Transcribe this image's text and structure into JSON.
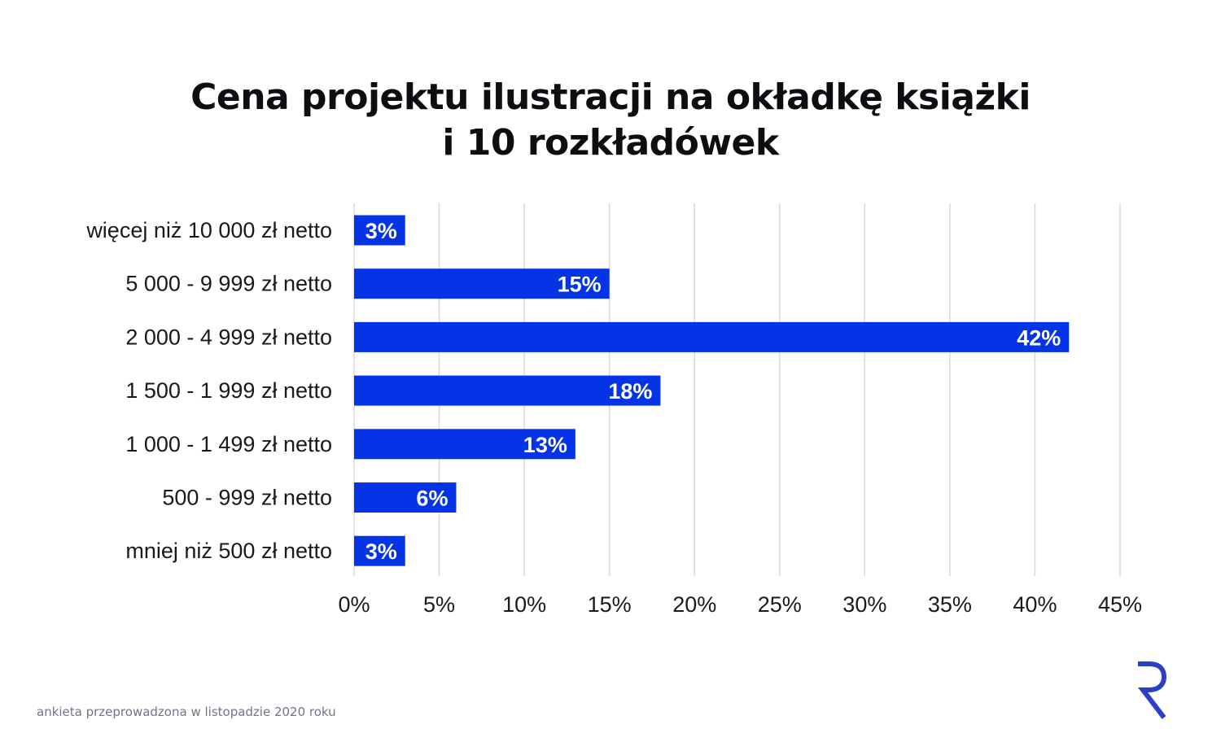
{
  "chart_data": {
    "type": "bar",
    "orientation": "horizontal",
    "title_lines": [
      "Cena projektu ilustracji na okładkę książki",
      "i 10 rozkładówek"
    ],
    "categories": [
      "więcej niż 10 000 zł netto",
      "5 000 - 9 999 zł netto",
      "2 000 - 4 999 zł netto",
      "1 500 - 1 999 zł netto",
      "1 000 - 1 499 zł netto",
      "500 - 999 zł netto",
      "mniej niż 500 zł netto"
    ],
    "values": [
      3,
      15,
      42,
      18,
      13,
      6,
      3
    ],
    "data_labels": [
      "3%",
      "15%",
      "42%",
      "18%",
      "13%",
      "6%",
      "3%"
    ],
    "x_ticks": [
      0,
      5,
      10,
      15,
      20,
      25,
      30,
      35,
      40,
      45
    ],
    "x_tick_labels": [
      "0%",
      "5%",
      "10%",
      "15%",
      "20%",
      "25%",
      "30%",
      "35%",
      "40%",
      "45%"
    ],
    "xlim": [
      0,
      45
    ],
    "grid": true,
    "legend": "none",
    "bar_color": "#0534e6",
    "grid_color": "#d9d9d9"
  },
  "footnote": "ankieta przeprowadzona w listopadzie 2020 roku",
  "logo": {
    "icon": "r-logo-icon",
    "color": "#2b3fc9"
  }
}
